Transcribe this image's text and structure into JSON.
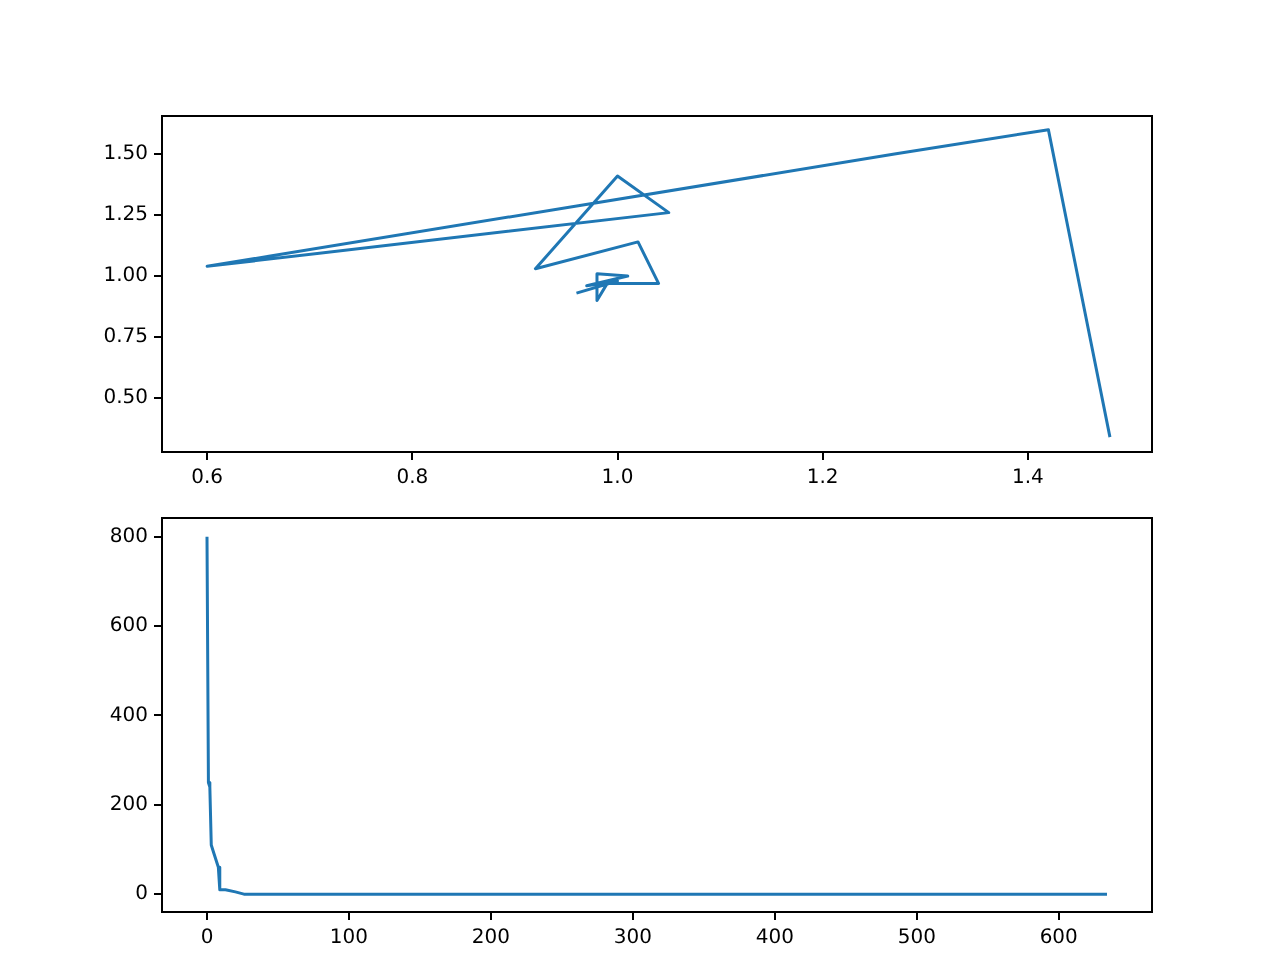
{
  "chart_data": [
    {
      "type": "line",
      "xlim": [
        0.556,
        1.521
      ],
      "ylim": [
        0.279,
        1.656
      ],
      "xticks": [
        {
          "value": 0.6,
          "label": "0.6"
        },
        {
          "value": 0.8,
          "label": "0.8"
        },
        {
          "value": 1.0,
          "label": "1.0"
        },
        {
          "value": 1.2,
          "label": "1.2"
        },
        {
          "value": 1.4,
          "label": "1.4"
        }
      ],
      "yticks": [
        {
          "value": 0.5,
          "label": "0.50"
        },
        {
          "value": 0.75,
          "label": "0.75"
        },
        {
          "value": 1.0,
          "label": "1.00"
        },
        {
          "value": 1.25,
          "label": "1.25"
        },
        {
          "value": 1.5,
          "label": "1.50"
        }
      ],
      "grid": false,
      "legend": false,
      "series": [
        {
          "color": "#1f77b4",
          "x": [
            1.48,
            1.42,
            1.27,
            0.6,
            1.05,
            1.0,
            0.92,
            1.02,
            1.04,
            0.99,
            0.98,
            0.98,
            1.01,
            0.97,
            1.0,
            0.96
          ],
          "values": [
            0.34,
            1.6,
            1.5,
            1.04,
            1.26,
            1.41,
            1.03,
            1.14,
            0.97,
            0.97,
            0.9,
            1.01,
            1.0,
            0.96,
            0.98,
            0.93
          ]
        }
      ]
    },
    {
      "type": "line",
      "xlim": [
        -31.7,
        665.7
      ],
      "ylim": [
        -40,
        842
      ],
      "xticks": [
        0,
        100,
        200,
        300,
        400,
        500,
        600
      ],
      "yticks": [
        0,
        200,
        400,
        600,
        800
      ],
      "grid": false,
      "legend": false,
      "series": [
        {
          "color": "#1f77b4",
          "x": [
            0,
            1,
            2,
            3,
            5,
            8,
            9,
            13,
            20,
            26,
            634
          ],
          "values": [
            800,
            250,
            240,
            110,
            90,
            60,
            10,
            10,
            5,
            0,
            0
          ]
        }
      ]
    }
  ]
}
